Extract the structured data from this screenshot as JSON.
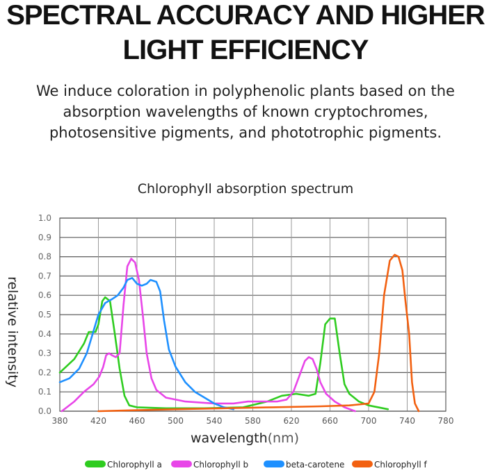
{
  "header": {
    "title_line1": "SPECTRAL ACCURACY AND HIGHER",
    "title_line2": "LIGHT EFFICIENCY",
    "subtitle_lines": [
      "We induce coloration in polyphenolic plants based on the",
      "absorption wavelengths of known cryptochromes,",
      "photosensitive pigments, and phototrophic pigments."
    ]
  },
  "chart_data": {
    "type": "line",
    "title": "Chlorophyll absorption spectrum",
    "xlabel": "wavelength",
    "xlabel_unit": "(nm)",
    "ylabel": "relative intensity",
    "xlim": [
      380,
      780
    ],
    "ylim": [
      0,
      1.0
    ],
    "x_ticks": [
      "380",
      "420",
      "460",
      "500",
      "540",
      "580",
      "620",
      "660",
      "700",
      "740",
      "780"
    ],
    "y_ticks": [
      "0.0",
      "0.1",
      "0.2",
      "0.3",
      "0.4",
      "0.5",
      "0.6",
      "0.7",
      "0.8",
      "0.9",
      "1.0"
    ],
    "grid": true,
    "legend_position": "bottom",
    "series": [
      {
        "name": "Chlorophyll a",
        "color": "#2ecc1f",
        "points": [
          [
            380,
            0.2
          ],
          [
            395,
            0.27
          ],
          [
            405,
            0.35
          ],
          [
            410,
            0.41
          ],
          [
            414,
            0.41
          ],
          [
            417,
            0.41
          ],
          [
            420,
            0.45
          ],
          [
            424,
            0.57
          ],
          [
            427,
            0.59
          ],
          [
            432,
            0.57
          ],
          [
            437,
            0.4
          ],
          [
            442,
            0.22
          ],
          [
            447,
            0.08
          ],
          [
            452,
            0.03
          ],
          [
            460,
            0.02
          ],
          [
            490,
            0.015
          ],
          [
            530,
            0.015
          ],
          [
            570,
            0.02
          ],
          [
            595,
            0.05
          ],
          [
            610,
            0.08
          ],
          [
            625,
            0.09
          ],
          [
            638,
            0.08
          ],
          [
            645,
            0.09
          ],
          [
            650,
            0.25
          ],
          [
            655,
            0.45
          ],
          [
            660,
            0.48
          ],
          [
            665,
            0.48
          ],
          [
            670,
            0.3
          ],
          [
            675,
            0.14
          ],
          [
            680,
            0.09
          ],
          [
            690,
            0.05
          ],
          [
            700,
            0.03
          ],
          [
            720,
            0.01
          ]
        ]
      },
      {
        "name": "Chlorophyll b",
        "color": "#e845e8",
        "points": [
          [
            382,
            0.0
          ],
          [
            395,
            0.05
          ],
          [
            405,
            0.1
          ],
          [
            415,
            0.14
          ],
          [
            421,
            0.18
          ],
          [
            425,
            0.23
          ],
          [
            428,
            0.29
          ],
          [
            431,
            0.3
          ],
          [
            434,
            0.29
          ],
          [
            438,
            0.28
          ],
          [
            442,
            0.3
          ],
          [
            446,
            0.55
          ],
          [
            450,
            0.75
          ],
          [
            454,
            0.79
          ],
          [
            458,
            0.77
          ],
          [
            462,
            0.68
          ],
          [
            466,
            0.5
          ],
          [
            470,
            0.3
          ],
          [
            475,
            0.17
          ],
          [
            480,
            0.11
          ],
          [
            490,
            0.07
          ],
          [
            510,
            0.05
          ],
          [
            540,
            0.04
          ],
          [
            560,
            0.04
          ],
          [
            575,
            0.05
          ],
          [
            590,
            0.05
          ],
          [
            605,
            0.05
          ],
          [
            615,
            0.06
          ],
          [
            622,
            0.1
          ],
          [
            628,
            0.18
          ],
          [
            634,
            0.26
          ],
          [
            638,
            0.28
          ],
          [
            642,
            0.27
          ],
          [
            646,
            0.22
          ],
          [
            650,
            0.15
          ],
          [
            656,
            0.09
          ],
          [
            665,
            0.05
          ],
          [
            675,
            0.02
          ],
          [
            686,
            0.0
          ]
        ]
      },
      {
        "name": "beta-carotene",
        "color": "#1e90ff",
        "points": [
          [
            380,
            0.15
          ],
          [
            390,
            0.17
          ],
          [
            400,
            0.22
          ],
          [
            408,
            0.3
          ],
          [
            414,
            0.4
          ],
          [
            420,
            0.5
          ],
          [
            427,
            0.56
          ],
          [
            434,
            0.58
          ],
          [
            440,
            0.6
          ],
          [
            446,
            0.64
          ],
          [
            450,
            0.68
          ],
          [
            455,
            0.69
          ],
          [
            460,
            0.66
          ],
          [
            465,
            0.65
          ],
          [
            470,
            0.66
          ],
          [
            474,
            0.68
          ],
          [
            480,
            0.67
          ],
          [
            484,
            0.62
          ],
          [
            488,
            0.47
          ],
          [
            493,
            0.32
          ],
          [
            500,
            0.23
          ],
          [
            510,
            0.15
          ],
          [
            520,
            0.1
          ],
          [
            530,
            0.07
          ],
          [
            540,
            0.04
          ],
          [
            550,
            0.02
          ],
          [
            560,
            0.01
          ]
        ]
      },
      {
        "name": "Chlorophyll f",
        "color": "#f26010",
        "points": [
          [
            420,
            0.0
          ],
          [
            460,
            0.005
          ],
          [
            500,
            0.01
          ],
          [
            550,
            0.015
          ],
          [
            600,
            0.02
          ],
          [
            650,
            0.025
          ],
          [
            680,
            0.03
          ],
          [
            700,
            0.04
          ],
          [
            706,
            0.1
          ],
          [
            711,
            0.3
          ],
          [
            716,
            0.6
          ],
          [
            722,
            0.78
          ],
          [
            727,
            0.81
          ],
          [
            731,
            0.8
          ],
          [
            735,
            0.73
          ],
          [
            738,
            0.58
          ],
          [
            742,
            0.4
          ],
          [
            745,
            0.15
          ],
          [
            748,
            0.04
          ],
          [
            752,
            0.0
          ]
        ]
      }
    ]
  }
}
